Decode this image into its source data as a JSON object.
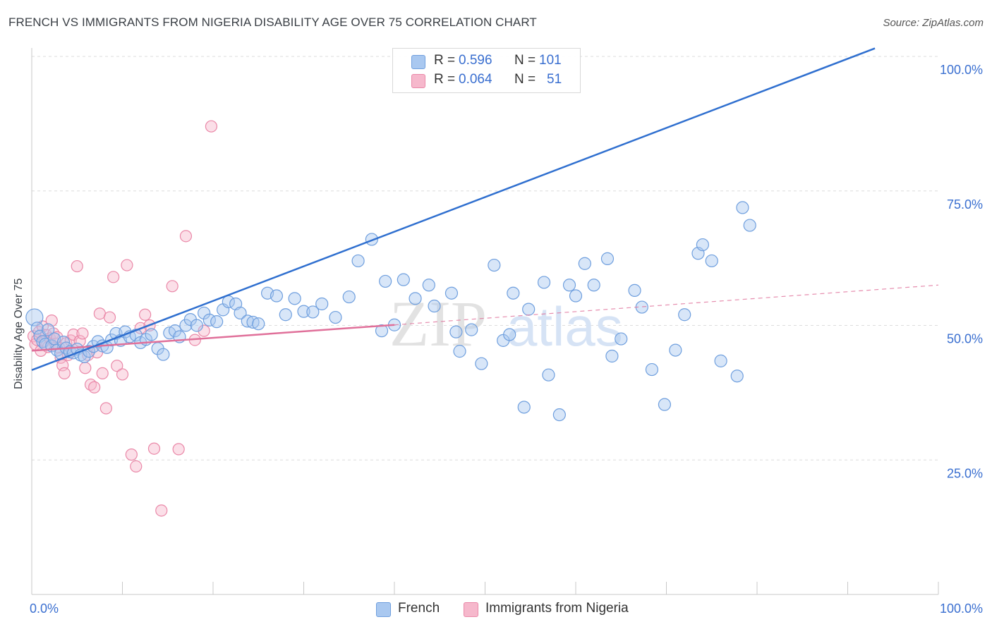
{
  "title": "FRENCH VS IMMIGRANTS FROM NIGERIA DISABILITY AGE OVER 75 CORRELATION CHART",
  "source": "Source: ZipAtlas.com",
  "watermark": {
    "zip": "ZIP",
    "atlas": "atlas"
  },
  "legend": {
    "rows": [
      {
        "r_label": "R =",
        "r_value": "0.596",
        "n_label": "N =",
        "n_value": "101"
      },
      {
        "r_label": "R =",
        "r_value": "0.064",
        "n_label": "N =",
        "n_value": "51"
      }
    ]
  },
  "bottom_legend": {
    "french": "French",
    "nigeria": "Immigrants from Nigeria"
  },
  "colors": {
    "french_fill": "#a9c8f0",
    "french_stroke": "#6f9fde",
    "french_line": "#2f6fcf",
    "nigeria_fill": "#f6b8cc",
    "nigeria_stroke": "#ea88a8",
    "nigeria_line": "#e0709a",
    "grid": "#dcdcdc",
    "tick_text": "#3a6fd0"
  },
  "chart_data": {
    "type": "scatter",
    "title": "FRENCH VS IMMIGRANTS FROM NIGERIA DISABILITY AGE OVER 75 CORRELATION CHART",
    "ylabel": "Disability Age Over 75",
    "xlabel": "",
    "xlim": [
      0,
      100
    ],
    "ylim": [
      0,
      104
    ],
    "x_tick_labels": [
      {
        "value": 0,
        "label": "0.0%"
      },
      {
        "value": 100,
        "label": "100.0%"
      }
    ],
    "y_tick_labels": [
      {
        "value": 25,
        "label": "25.0%"
      },
      {
        "value": 50,
        "label": "50.0%"
      },
      {
        "value": 75,
        "label": "75.0%"
      },
      {
        "value": 100,
        "label": "100.0%"
      }
    ],
    "x_minor_ticks": [
      0,
      10,
      20,
      30,
      40,
      50,
      60,
      70,
      80,
      90,
      100
    ],
    "series": [
      {
        "name": "French",
        "R": 0.596,
        "N": 101,
        "trend": {
          "x": [
            0,
            93
          ],
          "y": [
            41.7,
            101.5
          ],
          "style": "solid"
        },
        "points": [
          [
            0.3,
            51.5
          ],
          [
            0.6,
            49.5
          ],
          [
            0.9,
            48.0
          ],
          [
            1.2,
            47.0
          ],
          [
            1.5,
            46.5
          ],
          [
            1.8,
            49.2
          ],
          [
            2.2,
            46.2
          ],
          [
            2.5,
            47.5
          ],
          [
            2.8,
            45.4
          ],
          [
            3.2,
            44.8
          ],
          [
            3.5,
            46.9
          ],
          [
            3.8,
            45.8
          ],
          [
            4.2,
            45.1
          ],
          [
            4.6,
            44.9
          ],
          [
            5.0,
            45.6
          ],
          [
            5.4,
            44.5
          ],
          [
            5.8,
            44.2
          ],
          [
            6.3,
            45.2
          ],
          [
            6.8,
            46.1
          ],
          [
            7.3,
            47.0
          ],
          [
            7.8,
            46.2
          ],
          [
            8.3,
            45.9
          ],
          [
            8.8,
            47.3
          ],
          [
            9.3,
            48.5
          ],
          [
            9.8,
            47.2
          ],
          [
            10.3,
            48.8
          ],
          [
            10.8,
            47.9
          ],
          [
            11.5,
            48.2
          ],
          [
            12.0,
            46.8
          ],
          [
            12.6,
            47.4
          ],
          [
            13.2,
            48.3
          ],
          [
            13.9,
            45.7
          ],
          [
            14.5,
            44.6
          ],
          [
            15.2,
            48.6
          ],
          [
            15.8,
            49.0
          ],
          [
            16.3,
            47.9
          ],
          [
            17.0,
            50.0
          ],
          [
            17.5,
            51.1
          ],
          [
            18.2,
            50.0
          ],
          [
            19.0,
            52.3
          ],
          [
            19.6,
            51.0
          ],
          [
            20.4,
            50.7
          ],
          [
            21.1,
            52.9
          ],
          [
            21.7,
            54.4
          ],
          [
            22.5,
            54.0
          ],
          [
            23.0,
            52.3
          ],
          [
            23.8,
            50.8
          ],
          [
            24.4,
            50.6
          ],
          [
            25.0,
            50.3
          ],
          [
            26.0,
            56.0
          ],
          [
            27.0,
            55.5
          ],
          [
            28.0,
            52.0
          ],
          [
            29.0,
            55.0
          ],
          [
            30.0,
            52.6
          ],
          [
            31.0,
            52.5
          ],
          [
            32.0,
            54.0
          ],
          [
            33.5,
            51.5
          ],
          [
            35.0,
            55.3
          ],
          [
            36.0,
            62.0
          ],
          [
            37.5,
            66.0
          ],
          [
            38.6,
            49.0
          ],
          [
            39.0,
            58.2
          ],
          [
            40.0,
            50.1
          ],
          [
            41.0,
            58.5
          ],
          [
            42.3,
            55.0
          ],
          [
            43.8,
            57.5
          ],
          [
            44.4,
            53.6
          ],
          [
            46.3,
            56.0
          ],
          [
            46.8,
            48.8
          ],
          [
            47.2,
            45.2
          ],
          [
            48.5,
            49.2
          ],
          [
            49.6,
            42.9
          ],
          [
            51.0,
            61.2
          ],
          [
            52.0,
            47.2
          ],
          [
            52.7,
            48.3
          ],
          [
            53.1,
            56.0
          ],
          [
            54.3,
            34.8
          ],
          [
            54.8,
            53.0
          ],
          [
            56.5,
            58.0
          ],
          [
            57.0,
            40.8
          ],
          [
            58.2,
            33.4
          ],
          [
            59.3,
            57.5
          ],
          [
            60.0,
            55.5
          ],
          [
            61.0,
            61.5
          ],
          [
            62.0,
            57.5
          ],
          [
            63.5,
            62.4
          ],
          [
            64.0,
            44.3
          ],
          [
            65.0,
            47.5
          ],
          [
            66.5,
            56.5
          ],
          [
            67.3,
            53.4
          ],
          [
            68.4,
            41.8
          ],
          [
            69.8,
            35.3
          ],
          [
            71.0,
            45.4
          ],
          [
            72.0,
            52.0
          ],
          [
            73.5,
            63.4
          ],
          [
            74.0,
            65.0
          ],
          [
            75.0,
            62.0
          ],
          [
            76.0,
            43.4
          ],
          [
            77.8,
            40.6
          ],
          [
            78.4,
            71.9
          ],
          [
            79.2,
            68.6
          ]
        ]
      },
      {
        "name": "Immigrants from Nigeria",
        "R": 0.064,
        "N": 51,
        "trend": {
          "x": [
            0,
            40
          ],
          "y": [
            45.3,
            50.1
          ],
          "style": "solid"
        },
        "trend_extension": {
          "x": [
            40,
            100
          ],
          "y": [
            50.1,
            57.5
          ],
          "style": "dashed"
        },
        "points": [
          [
            0.2,
            48.0
          ],
          [
            0.4,
            46.5
          ],
          [
            0.6,
            47.3
          ],
          [
            0.8,
            48.8
          ],
          [
            1.0,
            45.3
          ],
          [
            1.2,
            49.8
          ],
          [
            1.4,
            47.0
          ],
          [
            1.6,
            48.2
          ],
          [
            1.8,
            46.0
          ],
          [
            2.0,
            47.6
          ],
          [
            2.2,
            50.9
          ],
          [
            2.4,
            48.5
          ],
          [
            2.6,
            46.6
          ],
          [
            2.8,
            47.8
          ],
          [
            3.0,
            45.9
          ],
          [
            3.2,
            44.0
          ],
          [
            3.4,
            42.6
          ],
          [
            3.6,
            41.1
          ],
          [
            3.8,
            46.7
          ],
          [
            4.0,
            44.5
          ],
          [
            4.3,
            47.2
          ],
          [
            4.6,
            48.3
          ],
          [
            5.0,
            61.0
          ],
          [
            5.3,
            47.1
          ],
          [
            5.6,
            48.5
          ],
          [
            5.9,
            42.1
          ],
          [
            6.2,
            44.5
          ],
          [
            6.5,
            39.0
          ],
          [
            6.9,
            38.5
          ],
          [
            7.2,
            45.0
          ],
          [
            7.5,
            52.2
          ],
          [
            7.8,
            41.1
          ],
          [
            8.2,
            34.6
          ],
          [
            8.6,
            51.5
          ],
          [
            9.0,
            59.0
          ],
          [
            9.4,
            42.5
          ],
          [
            10.0,
            40.9
          ],
          [
            10.5,
            61.2
          ],
          [
            11.0,
            26.0
          ],
          [
            11.5,
            23.8
          ],
          [
            12.0,
            49.5
          ],
          [
            12.5,
            52.0
          ],
          [
            13.0,
            50.0
          ],
          [
            13.5,
            27.1
          ],
          [
            14.3,
            15.6
          ],
          [
            15.5,
            57.3
          ],
          [
            16.2,
            27.0
          ],
          [
            17.0,
            66.6
          ],
          [
            18.0,
            47.3
          ],
          [
            19.0,
            49.0
          ],
          [
            19.8,
            87.0
          ]
        ]
      }
    ]
  }
}
